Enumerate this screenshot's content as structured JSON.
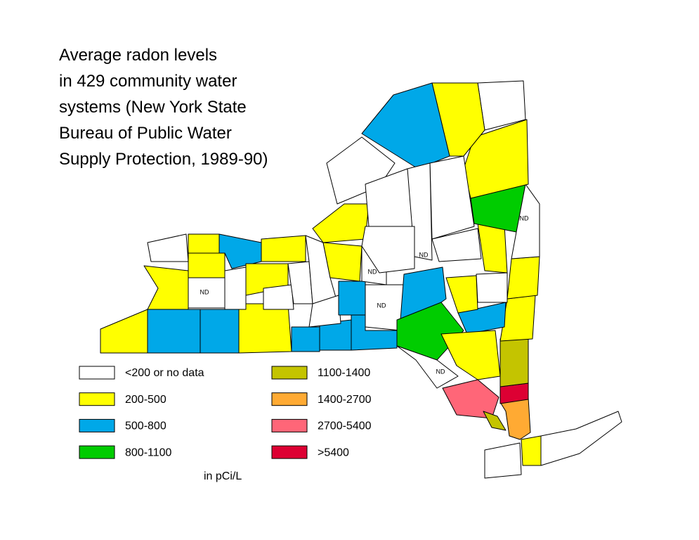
{
  "map": {
    "title_lines": [
      "Average radon levels",
      "in 429 community water",
      "systems (New York State",
      "Bureau of Public Water",
      "Supply Protection, 1989-90)"
    ],
    "legend": [
      {
        "label": "<200 or no data",
        "color": "#ffffff"
      },
      {
        "label": "200-500",
        "color": "#ffff00"
      },
      {
        "label": "500-800",
        "color": "#00a8e8"
      },
      {
        "label": "800-1100",
        "color": "#00cc00"
      },
      {
        "label": "1100-1400",
        "color": "#c4c400"
      },
      {
        "label": "1400-2700",
        "color": "#ffaa33"
      },
      {
        "label": "2700-5400",
        "color": "#ff6678"
      },
      {
        "label": ">5400",
        "color": "#dd0033"
      }
    ],
    "unit_note": "in pCi/L",
    "nd_labels": [
      "ND",
      "ND",
      "ND",
      "ND",
      "ND",
      "ND"
    ]
  }
}
